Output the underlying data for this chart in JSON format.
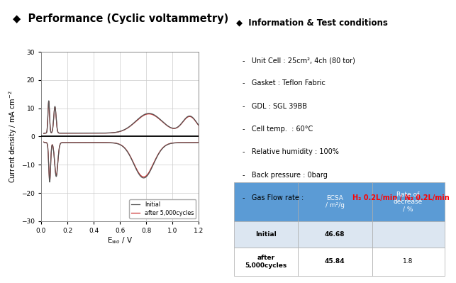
{
  "title": "Performance (Cyclic voltammetry)",
  "plot_xlabel": "E$_{wo}$ / V",
  "plot_ylabel": "Current density / mA cm$^{-2}$",
  "xlim": [
    0.0,
    1.2
  ],
  "ylim": [
    -30,
    30
  ],
  "xticks": [
    0.0,
    0.2,
    0.4,
    0.6,
    0.8,
    1.0,
    1.2
  ],
  "yticks": [
    -30,
    -20,
    -10,
    0,
    10,
    20,
    30
  ],
  "legend_initial": "Initial",
  "legend_after": "after 5,000cycles",
  "info_title": "Information & Test conditions",
  "info_items": [
    "Unit Cell : 25cm², 4ch (80 tor)",
    "Gasket : Teflon Fabric",
    "GDL : SGL 39BB",
    "Cell temp.  : 60°C",
    "Relative humidity : 100%",
    "Back pressure : 0barg",
    "Gas Flow rate : "
  ],
  "gas_flow_red": "H₂ 0.2L/min / N₂ 0.2L/min",
  "header_color": "#5b9bd5",
  "header_text_color": "#ffffff",
  "row1_bg": "#dce6f1",
  "row2_bg": "#ffffff",
  "line_color_initial": "#555555",
  "line_color_after": "#cc3333",
  "bg_color": "#ffffff",
  "grid_color": "#cccccc"
}
